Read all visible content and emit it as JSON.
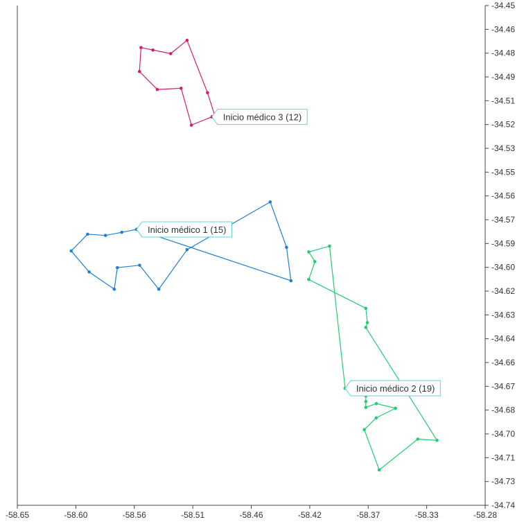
{
  "chart_data": {
    "type": "line",
    "title": "",
    "xlabel": "",
    "ylabel": "",
    "xlim": [
      -58.65,
      -58.28
    ],
    "ylim": [
      -34.74,
      -34.45
    ],
    "x_ticks": [
      "-58.65",
      "-58.60",
      "-58.56",
      "-58.51",
      "-58.46",
      "-58.42",
      "-58.37",
      "-58.33",
      "-58.28"
    ],
    "y_ticks": [
      "-34.45",
      "-34.46",
      "-34.48",
      "-34.49",
      "-34.51",
      "-34.52",
      "-34.53",
      "-34.55",
      "-34.56",
      "-34.57",
      "-34.59",
      "-34.60",
      "-34.62",
      "-34.63",
      "-34.64",
      "-34.66",
      "-34.67",
      "-34.68",
      "-34.70",
      "-34.71",
      "-34.73",
      "-34.74"
    ],
    "grid": false,
    "series": [
      {
        "name": "Inicio médico 1 (15)",
        "color": "#1f7fd6",
        "points": [
          [
            -58.5557,
            -34.5799
          ],
          [
            -58.5674,
            -34.5816
          ],
          [
            -58.5803,
            -34.5834
          ],
          [
            -58.5944,
            -34.5827
          ],
          [
            -58.6074,
            -34.5924
          ],
          [
            -58.5932,
            -34.6046
          ],
          [
            -58.5733,
            -34.6146
          ],
          [
            -58.5709,
            -34.6021
          ],
          [
            -58.5533,
            -34.6007
          ],
          [
            -58.5381,
            -34.6146
          ],
          [
            -58.5158,
            -34.5917
          ],
          [
            -58.45,
            -34.564
          ],
          [
            -58.4371,
            -34.5903
          ],
          [
            -58.4336,
            -34.6097
          ],
          [
            -58.5557,
            -34.5799
          ]
        ]
      },
      {
        "name": "Inicio médico 2 (19)",
        "color": "#1fcf6f",
        "points": [
          [
            -58.3908,
            -34.6721
          ],
          [
            -58.4031,
            -34.5896
          ],
          [
            -58.4195,
            -34.593
          ],
          [
            -58.4147,
            -34.5986
          ],
          [
            -58.4195,
            -34.609
          ],
          [
            -58.3744,
            -34.6257
          ],
          [
            -58.3732,
            -34.634
          ],
          [
            -58.3744,
            -34.6368
          ],
          [
            -58.3181,
            -34.7023
          ],
          [
            -58.3333,
            -34.7016
          ],
          [
            -58.3638,
            -34.7195
          ],
          [
            -58.3756,
            -34.6961
          ],
          [
            -58.3662,
            -34.6893
          ],
          [
            -58.3509,
            -34.6837
          ],
          [
            -58.3661,
            -34.681
          ],
          [
            -58.3744,
            -34.6832
          ],
          [
            -58.3744,
            -34.6798
          ],
          [
            -58.3744,
            -34.6766
          ],
          [
            -58.3908,
            -34.6721
          ]
        ]
      },
      {
        "name": "Inicio médico 3 (12)",
        "color": "#d41c6f",
        "points": [
          [
            -58.4961,
            -34.5146
          ],
          [
            -58.4938,
            -34.5139
          ],
          [
            -58.4996,
            -34.5006
          ],
          [
            -58.5158,
            -34.4702
          ],
          [
            -58.5287,
            -34.4779
          ],
          [
            -58.5428,
            -34.4758
          ],
          [
            -58.5522,
            -34.4744
          ],
          [
            -58.5534,
            -34.4883
          ],
          [
            -58.5393,
            -34.4987
          ],
          [
            -58.5205,
            -34.498
          ],
          [
            -58.5123,
            -34.5194
          ],
          [
            -58.4961,
            -34.5146
          ]
        ]
      }
    ]
  }
}
